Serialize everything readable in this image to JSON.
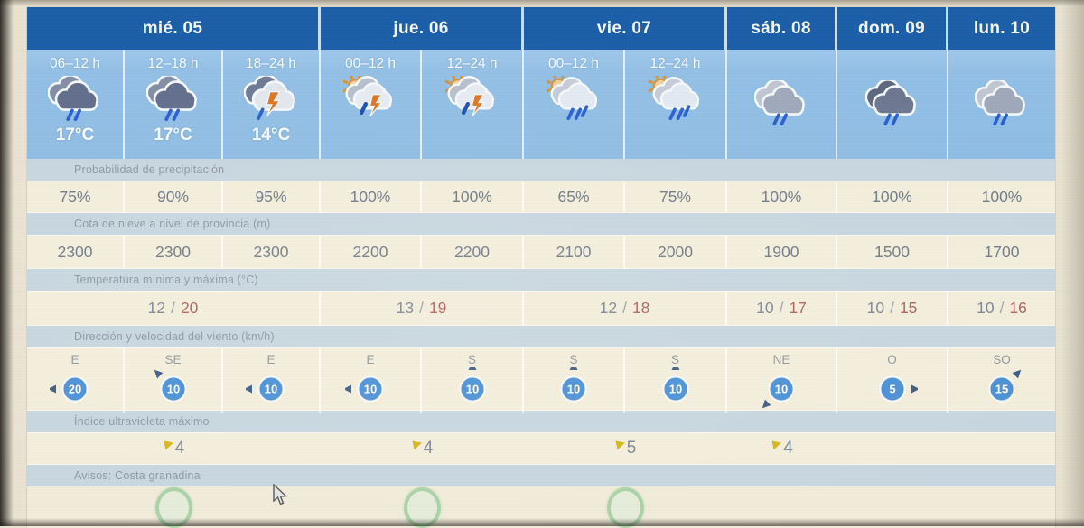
{
  "days": [
    {
      "label": "mié. 05",
      "span": 3
    },
    {
      "label": "jue. 06",
      "span": 2
    },
    {
      "label": "vie. 07",
      "span": 2
    },
    {
      "label": "sáb. 08",
      "span": 1
    },
    {
      "label": "dom. 09",
      "span": 1
    },
    {
      "label": "lun. 10",
      "span": 1
    }
  ],
  "columns": [
    {
      "day": 0,
      "time": "06–12 h",
      "icon": "rain-dark",
      "icon_name": "clouds-rain-icon",
      "temp": "17°C"
    },
    {
      "day": 0,
      "time": "12–18 h",
      "icon": "rain-dark",
      "icon_name": "clouds-rain-icon",
      "temp": "17°C"
    },
    {
      "day": 0,
      "time": "18–24 h",
      "icon": "storm",
      "icon_name": "storm-rain-icon",
      "temp": "14°C"
    },
    {
      "day": 1,
      "time": "00–12 h",
      "icon": "sun-storm",
      "icon_name": "sun-clouds-storm-icon"
    },
    {
      "day": 1,
      "time": "12–24 h",
      "icon": "sun-storm",
      "icon_name": "sun-clouds-storm-icon"
    },
    {
      "day": 2,
      "time": "00–12 h",
      "icon": "sun-rain",
      "icon_name": "sun-clouds-rain-icon"
    },
    {
      "day": 2,
      "time": "12–24 h",
      "icon": "sun-rain",
      "icon_name": "sun-clouds-rain-icon"
    },
    {
      "day": 3,
      "icon": "rain",
      "icon_name": "clouds-rain-icon"
    },
    {
      "day": 4,
      "icon": "rain-darker",
      "icon_name": "dark-clouds-rain-icon"
    },
    {
      "day": 5,
      "icon": "rain",
      "icon_name": "clouds-rain-icon"
    }
  ],
  "precipitation": {
    "label": "Probabilidad de precipitación",
    "values": [
      "75%",
      "90%",
      "95%",
      "100%",
      "100%",
      "65%",
      "75%",
      "100%",
      "100%",
      "100%"
    ]
  },
  "snow_level": {
    "label": "Cota de nieve a nivel de provincia (m)",
    "values": [
      "2300",
      "2300",
      "2300",
      "2200",
      "2200",
      "2100",
      "2000",
      "1900",
      "1500",
      "1700"
    ]
  },
  "temperature": {
    "label": "Temperatura mínima y máxima (°C)",
    "separator": "/",
    "values": [
      {
        "min": "12",
        "max": "20"
      },
      {
        "min": "13",
        "max": "19"
      },
      {
        "min": "12",
        "max": "18"
      },
      {
        "min": "10",
        "max": "17"
      },
      {
        "min": "10",
        "max": "15"
      },
      {
        "min": "10",
        "max": "16"
      }
    ]
  },
  "wind": {
    "label": "Dirección y velocidad del viento (km/h)",
    "values": [
      {
        "dir": "E",
        "speed": "20"
      },
      {
        "dir": "SE",
        "speed": "10"
      },
      {
        "dir": "E",
        "speed": "10"
      },
      {
        "dir": "E",
        "speed": "10"
      },
      {
        "dir": "S",
        "speed": "10"
      },
      {
        "dir": "S",
        "speed": "10"
      },
      {
        "dir": "S",
        "speed": "10"
      },
      {
        "dir": "NE",
        "speed": "10"
      },
      {
        "dir": "O",
        "speed": "5"
      },
      {
        "dir": "SO",
        "speed": "15"
      }
    ]
  },
  "uv": {
    "label": "Índice ultravioleta máximo",
    "values": [
      "4",
      "4",
      "5",
      "4",
      "",
      ""
    ]
  },
  "warnings": {
    "label": "Avisos: Costa granadina",
    "days_with_warning": [
      0,
      1,
      2
    ]
  },
  "colors": {
    "header_blue": "#1b5fa8",
    "panel_blue": "#92c0e6",
    "band_blue": "#c7d6e0",
    "cell_cream": "#f3eddc",
    "wind_badge_blue": "#4b90d6",
    "wind_arrow_blue": "#3d5c82",
    "rain_drop_blue": "#2a5fd0",
    "lightning_orange": "#e0731e",
    "uv_triangle_yellow": "#d4b619",
    "warning_circle_green": "#96c896",
    "temp_max_red": "#b0605a"
  }
}
